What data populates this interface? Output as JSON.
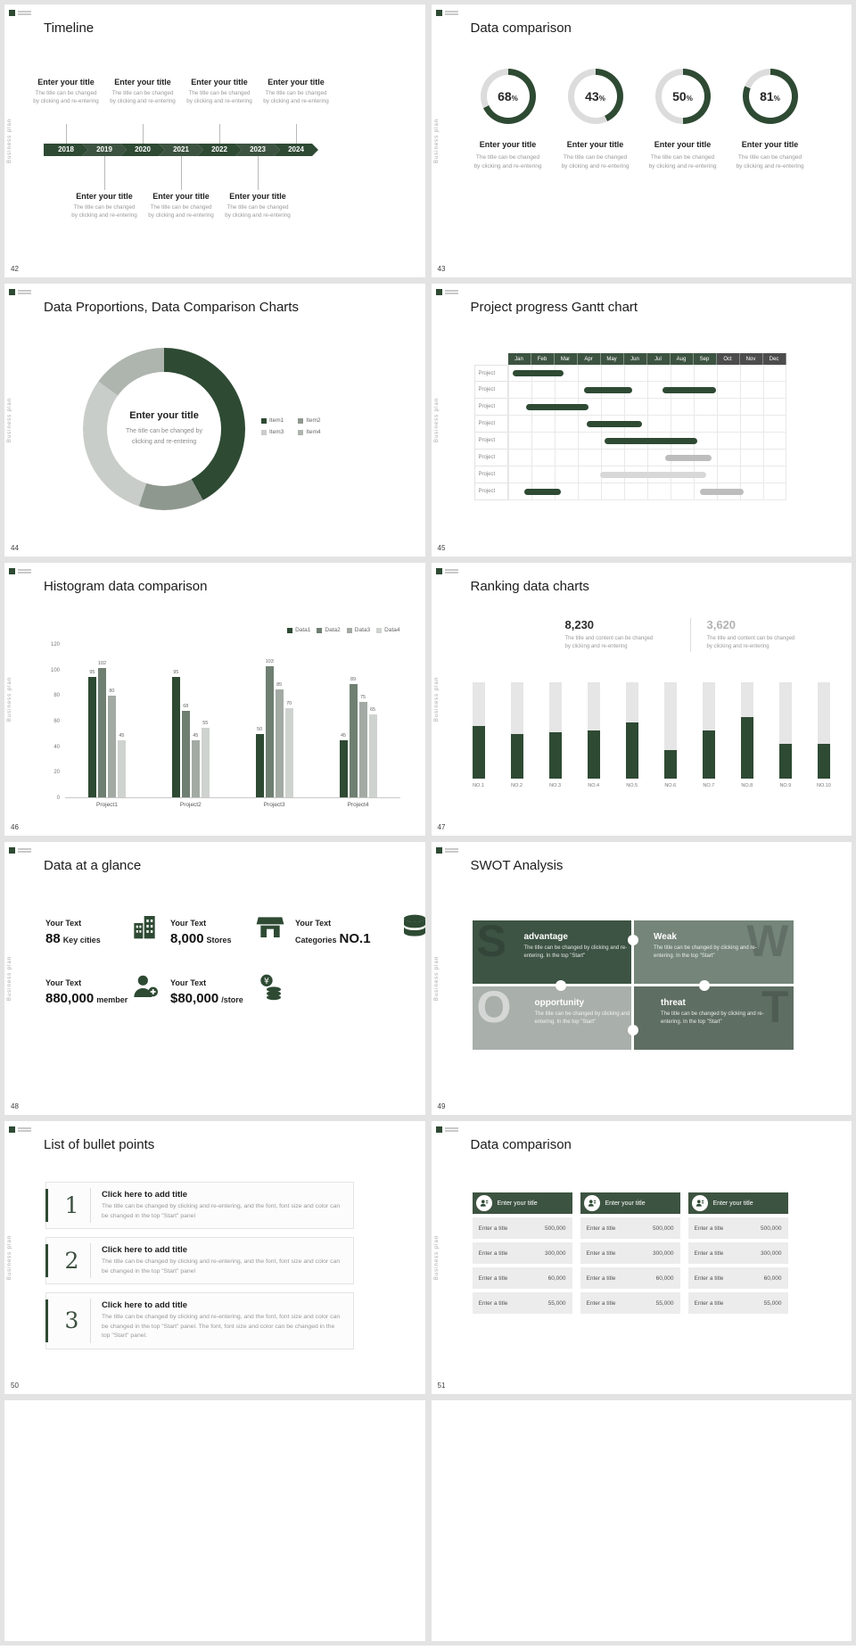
{
  "ui": {
    "vertical_label": "Business plan"
  },
  "colors": {
    "primary": "#2e4a33",
    "primary2": "#3d5341",
    "ring_bg": "#dcdcdc",
    "month_gray": "#4c4c4c",
    "rank_track": "#e6e6e6"
  },
  "slides": {
    "timeline": {
      "number": "42",
      "title": "Timeline",
      "years": [
        "2018",
        "2019",
        "2020",
        "2021",
        "2022",
        "2023",
        "2024"
      ],
      "item_title": "Enter your title",
      "item_line1": "The title can be changed",
      "item_line2": "by clicking and re-entering",
      "top_count": 4,
      "bottom_count": 3
    },
    "donuts": {
      "number": "43",
      "title": "Data comparison",
      "item_title": "Enter your title",
      "item_line1": "The title can be changed",
      "item_line2": "by clicking and re-entering",
      "percents": [
        68,
        43,
        50,
        81
      ],
      "percent_sign": "%"
    },
    "pie": {
      "number": "44",
      "title": "Data Proportions, Data Comparison Charts",
      "center_title": "Enter your title",
      "center_desc": "The title can be changed by clicking and re-entering",
      "segments": [
        {
          "label": "Item1",
          "value": 42,
          "color": "#2e4a33"
        },
        {
          "label": "Item2",
          "value": 13,
          "color": "#8f988f"
        },
        {
          "label": "Item3",
          "value": 30,
          "color": "#c9cdc9"
        },
        {
          "label": "Item4",
          "value": 15,
          "color": "#aeb4ae"
        }
      ]
    },
    "gantt": {
      "number": "45",
      "title": "Project progress Gantt chart",
      "months": [
        "Jan",
        "Feb",
        "Mar",
        "Apr",
        "May",
        "Jun",
        "Jul",
        "Aug",
        "Sep",
        "Oct",
        "Nov",
        "Dec"
      ],
      "gray_from": 9,
      "row_label": "Project",
      "row_count": 8,
      "bars": [
        {
          "row": 0,
          "start": 0.2,
          "end": 2.4,
          "color": "dark"
        },
        {
          "row": 1,
          "start": 3.3,
          "end": 5.4,
          "color": "dark"
        },
        {
          "row": 1,
          "start": 6.7,
          "end": 9.0,
          "color": "dark"
        },
        {
          "row": 2,
          "start": 0.8,
          "end": 3.5,
          "color": "dark"
        },
        {
          "row": 3,
          "start": 3.4,
          "end": 5.8,
          "color": "dark"
        },
        {
          "row": 4,
          "start": 4.2,
          "end": 8.2,
          "color": "dark"
        },
        {
          "row": 5,
          "start": 6.8,
          "end": 8.8,
          "color": "gray"
        },
        {
          "row": 6,
          "start": 4.0,
          "end": 8.6,
          "color": "light"
        },
        {
          "row": 7,
          "start": 0.7,
          "end": 2.3,
          "color": "dark"
        },
        {
          "row": 7,
          "start": 8.3,
          "end": 10.2,
          "color": "gray"
        }
      ]
    },
    "histogram": {
      "number": "46",
      "title": "Histogram data comparison",
      "categories": [
        "Project1",
        "Project2",
        "Project3",
        "Project4"
      ],
      "series": [
        {
          "name": "Data1",
          "color": "#2e4a33",
          "values": [
            95,
            95,
            50,
            45
          ]
        },
        {
          "name": "Data2",
          "color": "#6f7f72",
          "values": [
            102,
            68,
            103,
            89
          ]
        },
        {
          "name": "Data3",
          "color": "#a3aaa4",
          "values": [
            80,
            45,
            85,
            75
          ]
        },
        {
          "name": "Data4",
          "color": "#cfd3cf",
          "values": [
            45,
            55,
            70,
            65
          ]
        }
      ],
      "y_ticks": [
        120,
        100,
        80,
        60,
        40,
        20,
        0
      ],
      "y_max": 120
    },
    "ranking": {
      "number": "47",
      "title": "Ranking data charts",
      "stat_left": {
        "value": "8,230",
        "desc_line1": "The title and content can be changed",
        "desc_line2": "by clicking and re-entering"
      },
      "stat_right": {
        "value": "3,620",
        "desc_line1": "The title and content can be changed",
        "desc_line2": "by clicking and re-entering"
      },
      "labels": [
        "NO.1",
        "NO.2",
        "NO.3",
        "NO.4",
        "NO.5",
        "NO.6",
        "NO.7",
        "NO.8",
        "NO.9",
        "NO.10"
      ],
      "values": [
        55,
        46,
        48,
        50,
        58,
        30,
        50,
        64,
        36,
        36
      ],
      "max": 100
    },
    "stats": {
      "number": "48",
      "title": "Data at a glance",
      "items": [
        {
          "icon": "buildings",
          "label": "Your Text",
          "value": "88",
          "unit": "Key cities"
        },
        {
          "icon": "store",
          "label": "Your Text",
          "value": "8,000",
          "unit": "Stores"
        },
        {
          "icon": "database",
          "label": "Your Text",
          "pre": "Categories",
          "value": "NO.1"
        },
        {
          "icon": "member",
          "label": "Your Text",
          "value": "880,000",
          "unit": "member"
        },
        {
          "icon": "coins",
          "label": "Your Text",
          "value": "$80,000",
          "unit": "/store"
        }
      ]
    },
    "swot": {
      "number": "49",
      "title": "SWOT Analysis",
      "quads": [
        {
          "letter": "S",
          "heading": "advantage",
          "desc": "The title can be changed by clicking and re-entering. In the top \"Start\"",
          "color": "#3d5344"
        },
        {
          "letter": "W",
          "heading": "Weak",
          "desc": "The title can be changed by clicking and re-entering. In the top \"Start\"",
          "color": "#75857a"
        },
        {
          "letter": "O",
          "heading": "opportunity",
          "desc": "The title can be changed by clicking and re-entering. In the top \"Start\"",
          "color": "#a9afaa"
        },
        {
          "letter": "T",
          "heading": "threat",
          "desc": "The title can be changed by clicking and re-entering. In the top \"Start\"",
          "color": "#5f6e63"
        }
      ]
    },
    "list": {
      "number": "50",
      "title": "List of bullet points",
      "item_title": "Click here to add title",
      "items": [
        {
          "num": "1",
          "body": "The title can be changed by clicking and re-entering, and the font, font size and color can be changed in the top \"Start\" panel"
        },
        {
          "num": "2",
          "body": "The title can be changed by clicking and re-entering, and the font, font size and color can be changed in the top \"Start\" panel"
        },
        {
          "num": "3",
          "body": "The title can be changed by clicking and re-entering, and the font, font size and color can be changed in the top \"Start\" panel. The font, font size and color can be changed in the top \"Start\" panel."
        }
      ]
    },
    "tables": {
      "number": "51",
      "title": "Data comparison",
      "header": "Enter your title",
      "row_label": "Enter a title",
      "row_values": [
        "500,000",
        "300,000",
        "60,000",
        "55,000"
      ],
      "column_count": 3
    }
  }
}
